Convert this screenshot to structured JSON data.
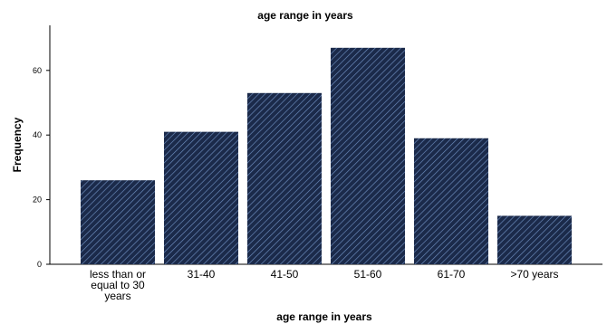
{
  "chart_data": {
    "type": "bar",
    "title": "age range in years",
    "xlabel": "age range in years",
    "ylabel": "Frequency",
    "categories": [
      "less than or equal to 30 years",
      "31-40",
      "41-50",
      "51-60",
      "61-70",
      ">70 years"
    ],
    "values": [
      26,
      41,
      53,
      67,
      39,
      15
    ],
    "yticks": [
      0,
      20,
      40,
      60
    ],
    "ylim": [
      0,
      73
    ],
    "grid": false,
    "colors": {
      "bar_fill": "#1b2a4a",
      "bar_hatch": "#6f8fc0"
    }
  }
}
